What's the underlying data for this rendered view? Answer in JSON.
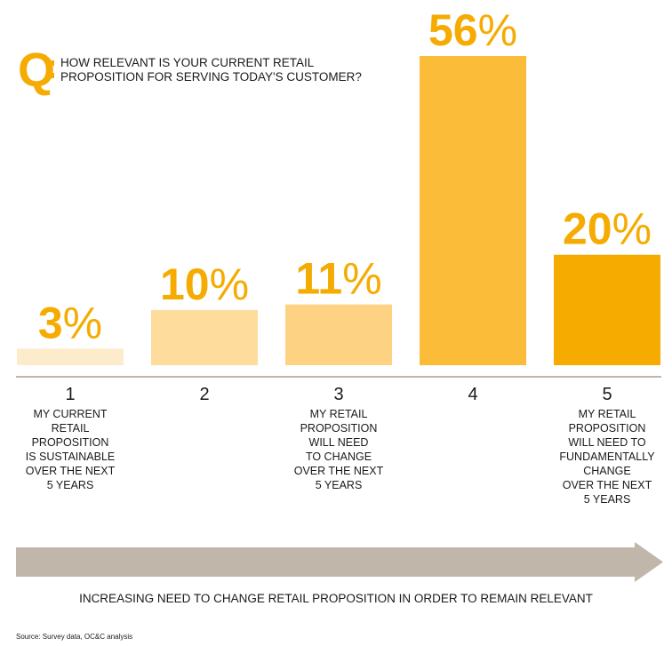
{
  "question": {
    "q_letter": "Q",
    "text": "HOW RELEVANT IS YOUR CURRENT RETAIL PROPOSITION FOR SERVING TODAY'S CUSTOMER?"
  },
  "chart_data": {
    "type": "bar",
    "categories": [
      "1",
      "2",
      "3",
      "4",
      "5"
    ],
    "values": [
      3,
      10,
      11,
      56,
      20
    ],
    "value_labels": [
      "3%",
      "10%",
      "11%",
      "56%",
      "20%"
    ],
    "category_descriptions": [
      "MY CURRENT\nRETAIL\nPROPOSITION\nIS SUSTAINABLE\nOVER THE NEXT\n5 YEARS",
      "",
      "MY RETAIL\nPROPOSITION\nWILL NEED\nTO CHANGE\nOVER THE NEXT\n5 YEARS",
      "",
      "MY RETAIL\nPROPOSITION\nWILL NEED TO\nFUNDAMENTALLY\nCHANGE\nOVER THE NEXT\n5 YEARS"
    ],
    "colors": [
      "#fdeccb",
      "#fddc9c",
      "#fdd283",
      "#fbbc3a",
      "#f5ab00"
    ],
    "ylim": [
      0,
      56
    ],
    "xlabel": "INCREASING NEED TO CHANGE RETAIL PROPOSITION IN ORDER TO REMAIN RELEVANT",
    "ylabel": "",
    "title": "",
    "grid": false,
    "legend": "none"
  },
  "colors": {
    "accent": "#f5ab00",
    "arrow": "#c0b6aa",
    "baseline": "#c0b6aa"
  },
  "source": "Source: Survey data, OC&C analysis"
}
